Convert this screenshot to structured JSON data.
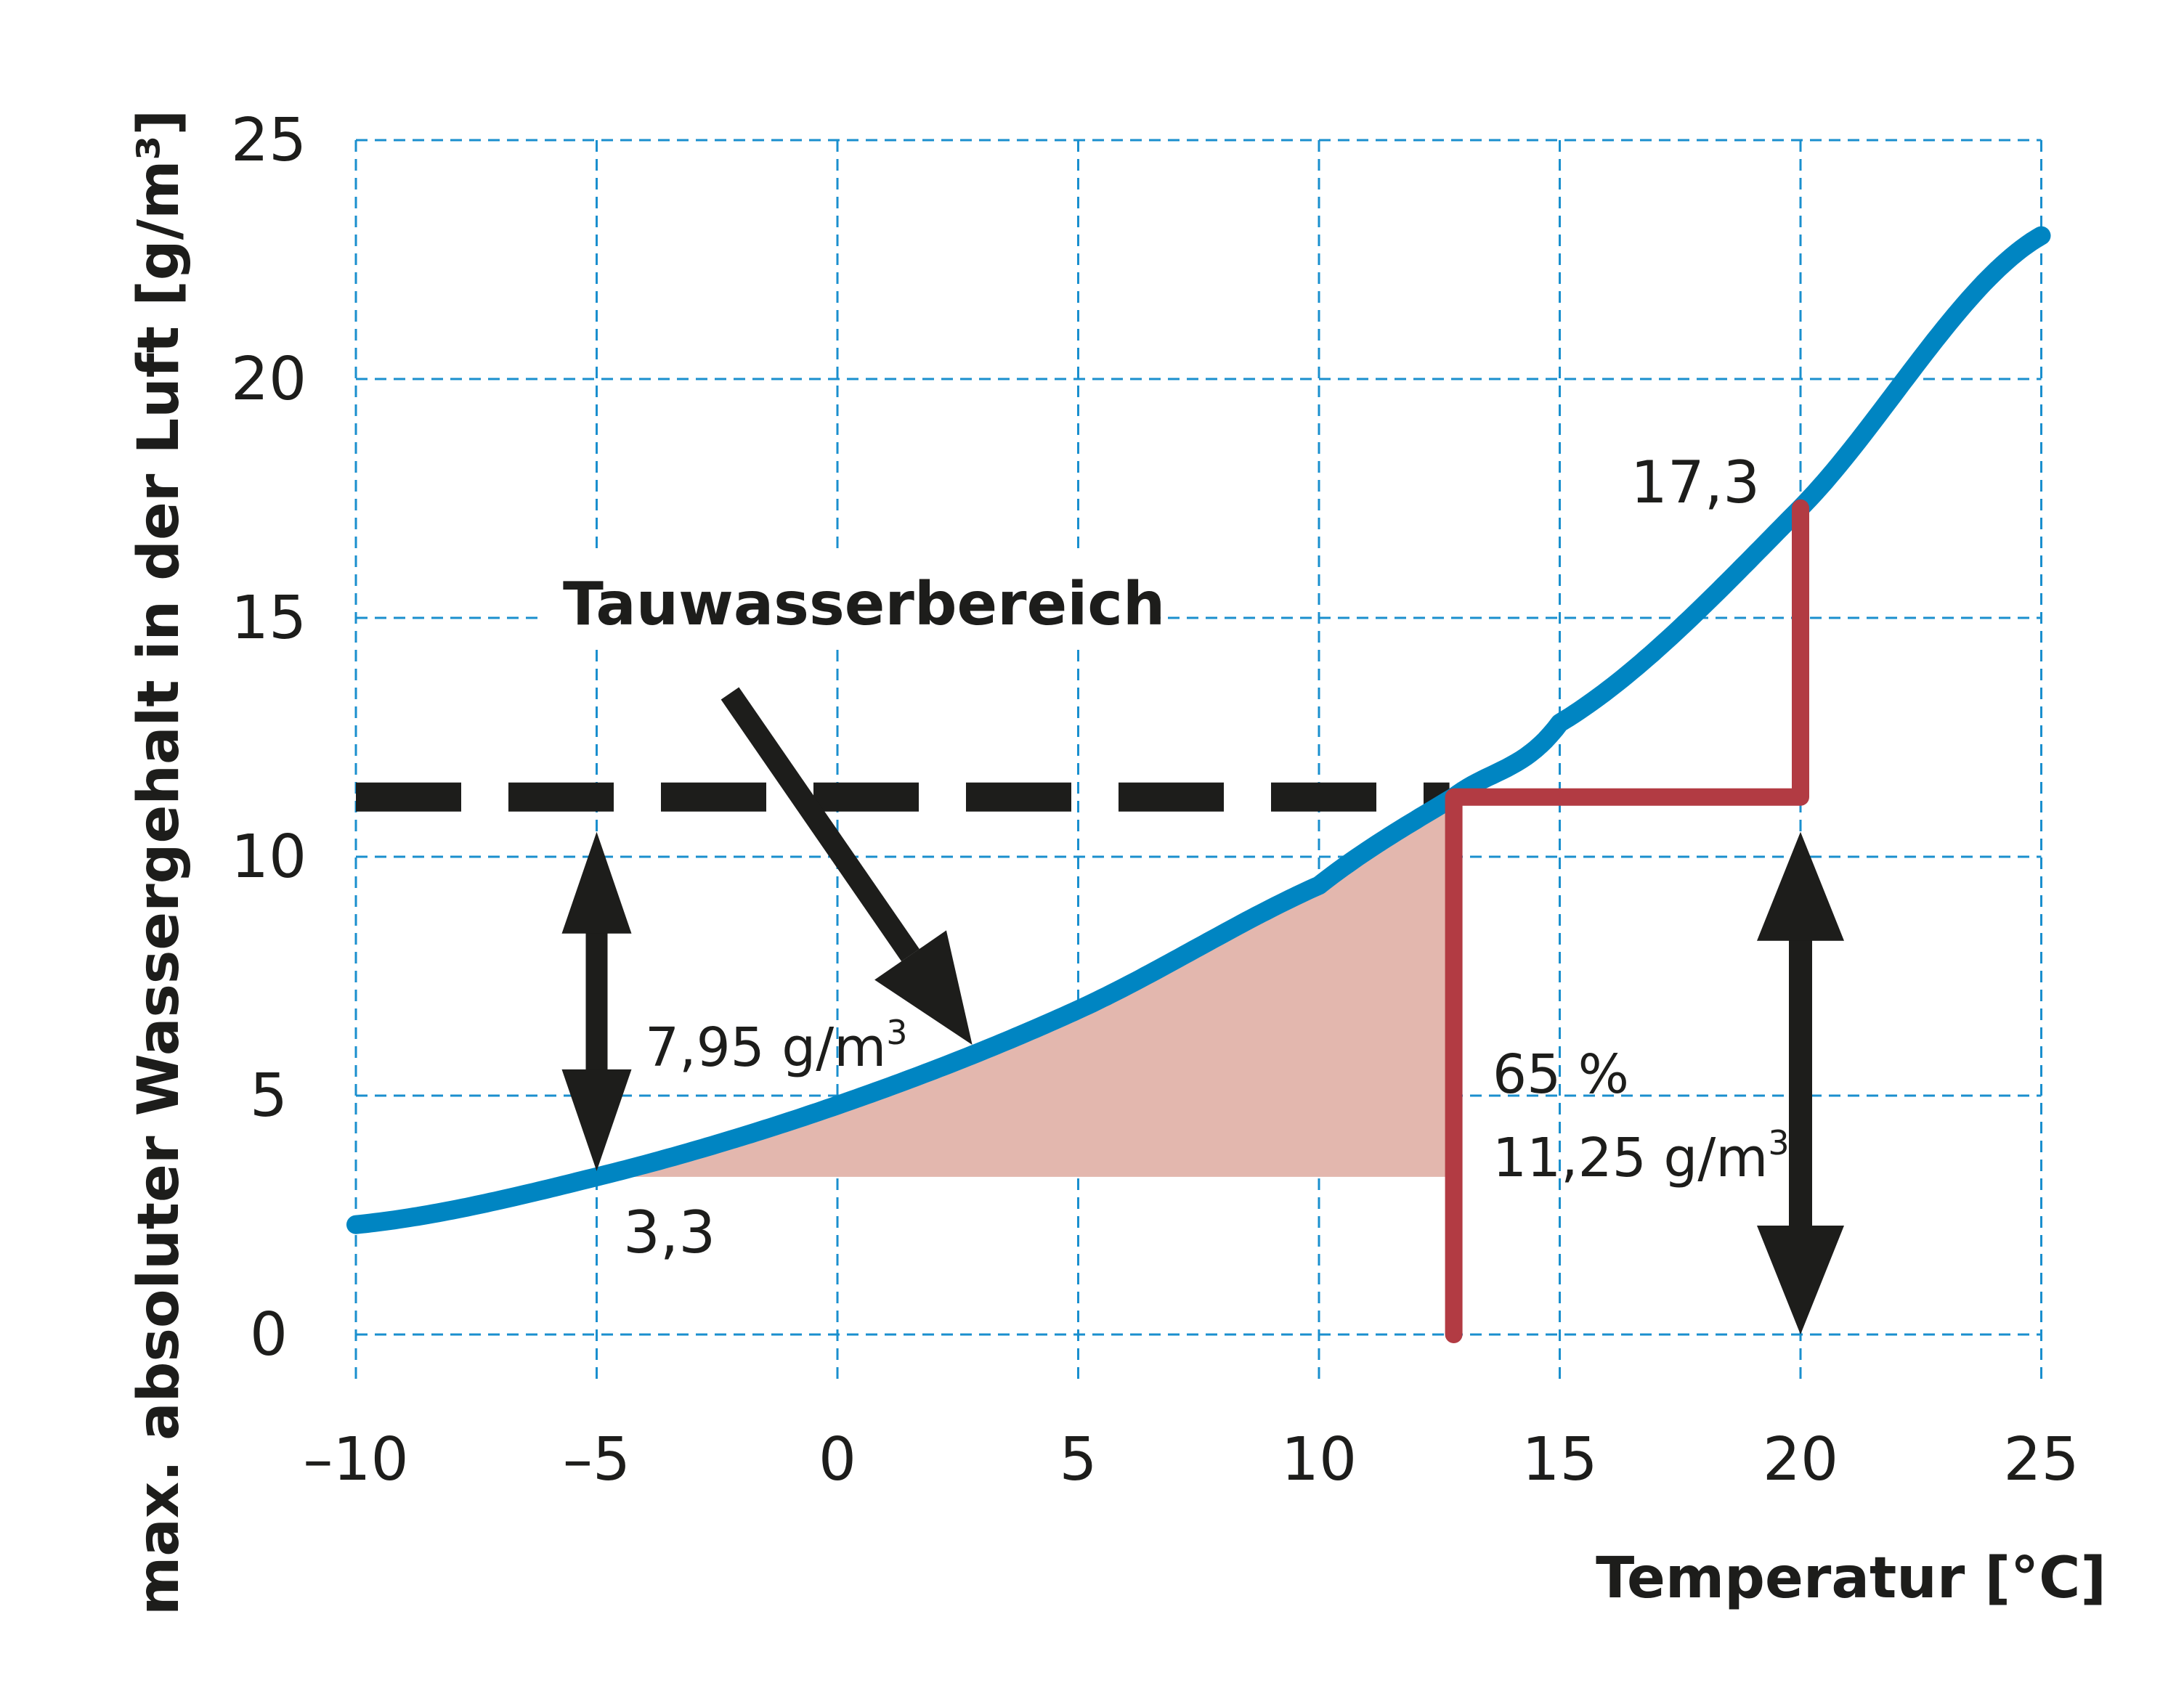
{
  "chart_data": {
    "type": "line",
    "xlabel": "Temperatur [°C]",
    "ylabel": "max. absoluter Wassergehalt in der Luft [g/m³]",
    "xlim": [
      -10,
      25
    ],
    "ylim": [
      0,
      25
    ],
    "x_ticks": [
      "–10",
      "–5",
      "0",
      "5",
      "10",
      "15",
      "20",
      "25"
    ],
    "y_ticks": [
      "0",
      "5",
      "10",
      "15",
      "20",
      "25"
    ],
    "grid": true,
    "colors": {
      "curve": "#0085c2",
      "grid": "#1a8fce",
      "dew_path": "#b23b43",
      "condensation_area": "#e3b7ae",
      "arrow": "#1d1d1b"
    },
    "series": [
      {
        "x": [
          -10,
          -5,
          0,
          5,
          10,
          12.8,
          15,
          20,
          25
        ],
        "values": [
          2.3,
          3.3,
          4.8,
          6.8,
          9.4,
          11.25,
          12.8,
          17.3,
          23.0
        ]
      }
    ],
    "reference_line": {
      "y": 11.25,
      "x_start": -10,
      "x_end": 12.8,
      "style": "dashed"
    },
    "condensation_area": {
      "x_start": -5,
      "x_end": 12.8,
      "y_bottom": 3.3
    },
    "dew_path": {
      "points": [
        [
          12.8,
          0
        ],
        [
          12.8,
          11.25
        ],
        [
          20,
          11.25
        ],
        [
          20,
          17.3
        ]
      ]
    },
    "annotations": {
      "tauwasserbereich": "Tauwasserbereich",
      "value_17_3": "17,3",
      "value_3_3": "3,3",
      "diff_left": "7,95 g/m",
      "humidity_pct": "65 %",
      "abs_value": "11,25 g/m",
      "superscript_3": "3"
    }
  }
}
